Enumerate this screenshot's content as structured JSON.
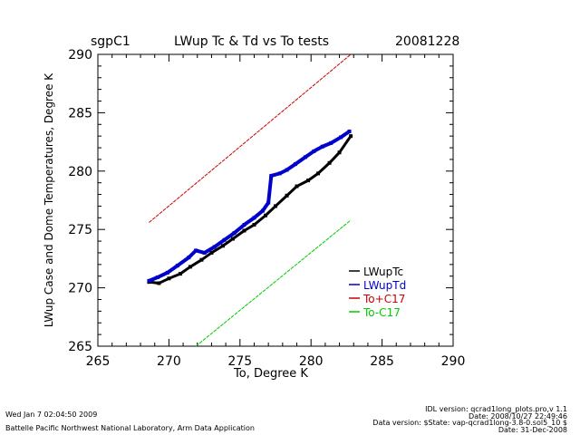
{
  "header": {
    "site": "sgpC1",
    "title": "LWup Tc & Td vs To tests",
    "date": "20081228"
  },
  "footer": {
    "run_time": "Wed Jan  7 02:04:50 2009",
    "institution": "Battelle Pacific Northwest National Laboratory, Arm Data Application",
    "idl_version": "IDL version: qcrad1long_plots.pro,v 1.1",
    "idl_date": "Date: 2008/10/27 22:49:46",
    "data_version": "Data version: $State: vap-qcrad1long-3.8-0.sol5_10 $",
    "data_date": "Date: 31-Dec-2008"
  },
  "chart_data": {
    "type": "scatter",
    "title": "LWup Tc & Td vs To tests",
    "xlabel": "To, Degree K",
    "ylabel": "LWup Case and Dome Temperatures, Degree K",
    "xlim": [
      265,
      290
    ],
    "ylim": [
      265,
      290
    ],
    "xticks": [
      "265",
      "270",
      "275",
      "280",
      "285",
      "290"
    ],
    "yticks": [
      "265",
      "270",
      "275",
      "280",
      "285",
      "290"
    ],
    "legend_position": "lower-right",
    "colors": {
      "tc": "#000000",
      "td": "#0000cc",
      "plus": "#cc0000",
      "minus": "#00cc00"
    },
    "series": [
      {
        "name": "LWupTc",
        "color": "#000000",
        "points": [
          [
            268.6,
            270.5
          ],
          [
            269.3,
            270.4
          ],
          [
            270.0,
            270.8
          ],
          [
            270.8,
            271.2
          ],
          [
            271.5,
            271.8
          ],
          [
            272.3,
            272.4
          ],
          [
            273.0,
            273.0
          ],
          [
            273.8,
            273.6
          ],
          [
            274.5,
            274.2
          ],
          [
            275.3,
            274.9
          ],
          [
            276.0,
            275.4
          ],
          [
            276.8,
            276.2
          ],
          [
            277.5,
            277.0
          ],
          [
            278.3,
            277.9
          ],
          [
            279.0,
            278.7
          ],
          [
            279.8,
            279.2
          ],
          [
            280.5,
            279.8
          ],
          [
            281.3,
            280.7
          ],
          [
            282.0,
            281.6
          ],
          [
            282.8,
            283.0
          ]
        ]
      },
      {
        "name": "LWupTd",
        "color": "#0000cc",
        "points": [
          [
            268.6,
            270.6
          ],
          [
            269.2,
            270.9
          ],
          [
            269.9,
            271.3
          ],
          [
            270.6,
            271.9
          ],
          [
            271.4,
            272.6
          ],
          [
            271.9,
            273.2
          ],
          [
            272.5,
            273.0
          ],
          [
            273.2,
            273.5
          ],
          [
            273.9,
            274.1
          ],
          [
            274.6,
            274.7
          ],
          [
            275.3,
            275.4
          ],
          [
            276.0,
            276.0
          ],
          [
            276.6,
            276.6
          ],
          [
            277.0,
            277.3
          ],
          [
            277.2,
            279.6
          ],
          [
            277.8,
            279.8
          ],
          [
            278.3,
            280.1
          ],
          [
            278.9,
            280.6
          ],
          [
            279.6,
            281.2
          ],
          [
            280.2,
            281.7
          ],
          [
            280.8,
            282.1
          ],
          [
            281.4,
            282.4
          ],
          [
            282.1,
            282.9
          ],
          [
            282.7,
            283.4
          ]
        ]
      },
      {
        "name": "To+C17",
        "color": "#cc0000",
        "points": [
          [
            268.6,
            275.6
          ],
          [
            282.8,
            290.0
          ]
        ]
      },
      {
        "name": "To-C17",
        "color": "#00cc00",
        "points": [
          [
            271.9,
            265.0
          ],
          [
            282.8,
            275.8
          ]
        ]
      }
    ]
  }
}
